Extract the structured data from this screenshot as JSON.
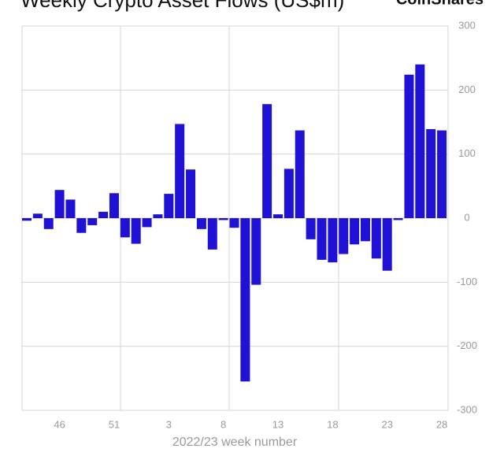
{
  "chart_data": {
    "type": "bar",
    "title": "Weekly Crypto Asset Flows (US$m)",
    "brand": "CoinShares",
    "x_label": "2022/23 week number",
    "categories": [
      null,
      null,
      null,
      "46",
      null,
      null,
      null,
      null,
      "51",
      null,
      null,
      null,
      null,
      "3",
      null,
      null,
      null,
      null,
      "8",
      null,
      null,
      null,
      null,
      "13",
      null,
      null,
      null,
      null,
      "18",
      null,
      null,
      null,
      null,
      "23",
      null,
      null,
      null,
      null,
      "28"
    ],
    "values": [
      -4,
      7,
      -17,
      44,
      29,
      -23,
      -11,
      10,
      39,
      -30,
      -40,
      -14,
      6,
      38,
      147,
      76,
      -17,
      -49,
      -3,
      -15,
      -255,
      -104,
      178,
      6,
      77,
      137,
      -33,
      -65,
      -69,
      -56,
      -41,
      -36,
      -63,
      -82,
      -3,
      224,
      240,
      139,
      137
    ],
    "color": "#1f12d6",
    "ylim": [
      -300,
      300
    ],
    "yticks": [
      -300,
      -200,
      -100,
      0,
      100,
      200,
      300
    ],
    "grid": true
  }
}
